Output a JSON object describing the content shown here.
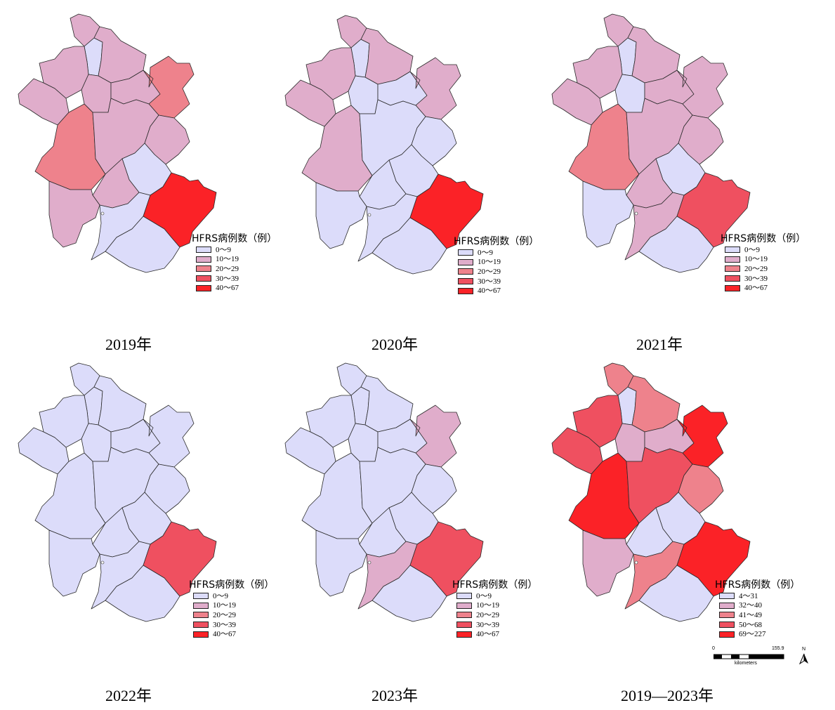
{
  "colors": {
    "class1": "#dcdcfa",
    "class2": "#e0adcb",
    "class3": "#ee828c",
    "class4": "#ef5060",
    "class5": "#fb2227",
    "border": "#2a2a2a"
  },
  "panels": [
    {
      "caption": "2019年",
      "legend": {
        "title": "HFRS病例数（例）",
        "items": [
          "0～9",
          "10～19",
          "20～29",
          "30～39",
          "40～67"
        ]
      },
      "region_classes": [
        2,
        1,
        2,
        2,
        2,
        2,
        2,
        3,
        3,
        2,
        2,
        1,
        2,
        2,
        1,
        5,
        1
      ]
    },
    {
      "caption": "2020年",
      "legend": {
        "title": "HFRS病例数（例）",
        "items": [
          "0～9",
          "10～19",
          "20～29",
          "30～39",
          "40～67"
        ]
      },
      "region_classes": [
        2,
        1,
        2,
        2,
        2,
        1,
        1,
        2,
        2,
        1,
        1,
        1,
        1,
        1,
        1,
        5,
        1
      ]
    },
    {
      "caption": "2021年",
      "legend": {
        "title": "HFRS病例数（例）",
        "items": [
          "0～9",
          "10～19",
          "20～29",
          "30～39",
          "40～67"
        ]
      },
      "region_classes": [
        2,
        1,
        2,
        2,
        2,
        1,
        2,
        3,
        2,
        2,
        2,
        1,
        2,
        1,
        2,
        4,
        1
      ]
    },
    {
      "caption": "2022年",
      "legend": {
        "title": "HFRS病例数（例）",
        "items": [
          "0～9",
          "10～19",
          "20～29",
          "30～39",
          "40～67"
        ]
      },
      "region_classes": [
        1,
        1,
        1,
        1,
        1,
        1,
        1,
        1,
        1,
        1,
        1,
        1,
        1,
        1,
        1,
        4,
        1
      ]
    },
    {
      "caption": "2023年",
      "legend": {
        "title": "HFRS病例数（例）",
        "items": [
          "0～9",
          "10～19",
          "20～29",
          "30～39",
          "40～67"
        ]
      },
      "region_classes": [
        1,
        1,
        1,
        1,
        1,
        1,
        1,
        1,
        2,
        1,
        1,
        1,
        1,
        1,
        2,
        4,
        1
      ]
    },
    {
      "caption": "2019—2023年",
      "legend": {
        "title": "HFRS病例数（例）",
        "items": [
          "4～31",
          "32～40",
          "41～49",
          "50～68",
          "69～227"
        ]
      },
      "region_classes": [
        3,
        1,
        3,
        4,
        4,
        2,
        2,
        5,
        5,
        4,
        3,
        1,
        1,
        2,
        3,
        5,
        1
      ],
      "scalebar": {
        "start": "0",
        "end": "155.9",
        "unit": "kilometers",
        "north": "N"
      }
    }
  ]
}
